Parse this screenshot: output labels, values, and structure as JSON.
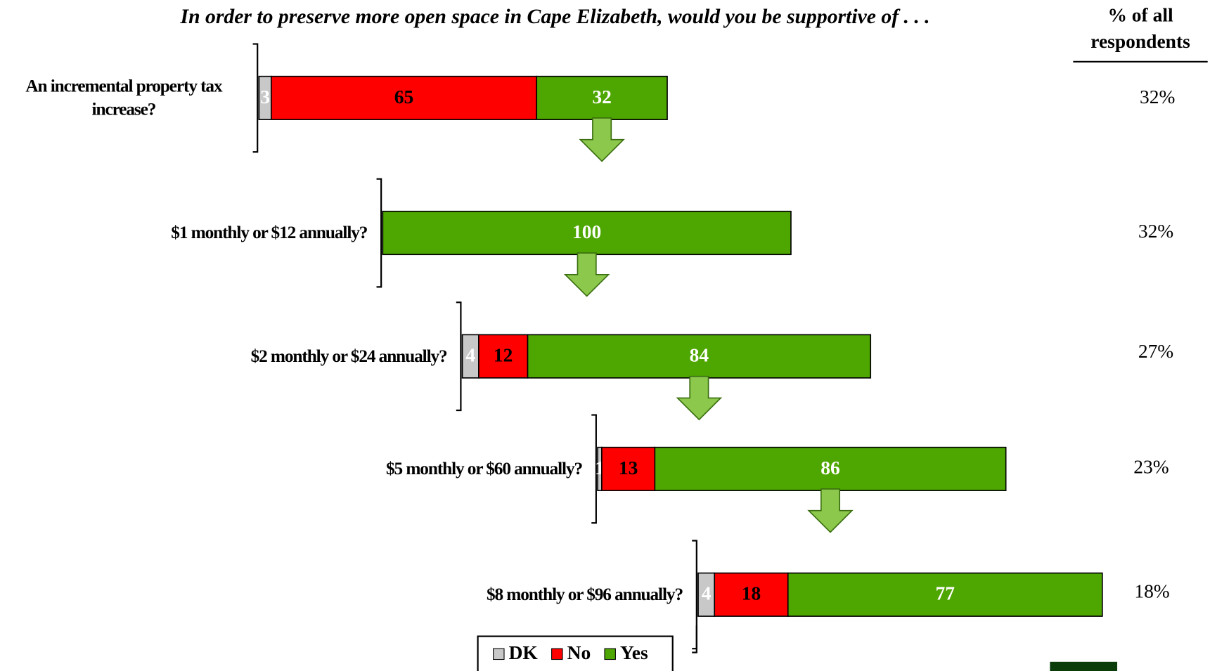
{
  "chart_data": {
    "type": "bar",
    "orientation": "horizontal",
    "stacked": true,
    "title": "In order to preserve more open space in Cape Elizabeth, would you be supportive of . . .",
    "categories": [
      "An incremental property tax increase?",
      "$1 monthly or $12 annually?",
      "$2 monthly or $24 annually?",
      "$5 monthly or $60 annually?",
      "$8 monthly or $96 annually?"
    ],
    "series": [
      {
        "name": "DK",
        "color": "#c8c8c8",
        "label_color": "#ffffff",
        "values": [
          3,
          null,
          4,
          1,
          4
        ]
      },
      {
        "name": "No",
        "color": "#ff0000",
        "label_color": "#000000",
        "values": [
          65,
          null,
          12,
          13,
          18
        ]
      },
      {
        "name": "Yes",
        "color": "#4ea600",
        "label_color": "#ffffff",
        "values": [
          32,
          100,
          84,
          86,
          77
        ]
      }
    ],
    "xlim": [
      0,
      100
    ],
    "respondent_share": {
      "title": "% of all respondents",
      "values": [
        32,
        32,
        27,
        23,
        18
      ],
      "value_labels": [
        "32%",
        "32%",
        "27%",
        "23%",
        "18%"
      ]
    }
  }
}
